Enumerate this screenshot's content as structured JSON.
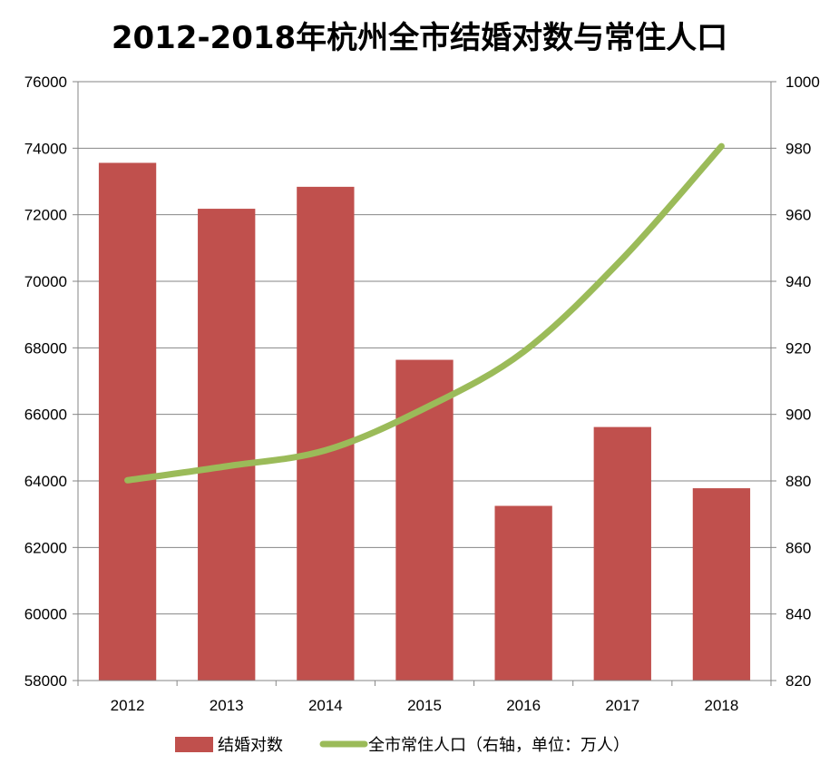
{
  "chart_data": {
    "type": "bar",
    "title": "2012-2018年杭州全市结婚对数与常住人口",
    "categories": [
      "2012",
      "2013",
      "2014",
      "2015",
      "2016",
      "2017",
      "2018"
    ],
    "series": [
      {
        "name": "结婚对数",
        "type": "bar",
        "axis": "left",
        "color": "#C0504D",
        "values": [
          73560,
          72180,
          72840,
          67640,
          63250,
          65620,
          63780
        ]
      },
      {
        "name": "全市常住人口（右轴，单位：万人）",
        "type": "line",
        "axis": "right",
        "color": "#9BBB59",
        "values": [
          880.2,
          884.4,
          889.2,
          901.8,
          918.8,
          946.8,
          980.6
        ]
      }
    ],
    "y_left": {
      "min": 58000,
      "max": 76000,
      "step": 2000,
      "ticks": [
        "58000",
        "60000",
        "62000",
        "64000",
        "66000",
        "68000",
        "70000",
        "72000",
        "74000",
        "76000"
      ]
    },
    "y_right": {
      "min": 820,
      "max": 1000,
      "step": 20,
      "ticks": [
        "820",
        "840",
        "860",
        "880",
        "900",
        "920",
        "940",
        "960",
        "980",
        "1000"
      ]
    },
    "grid": true,
    "legend_position": "bottom"
  }
}
